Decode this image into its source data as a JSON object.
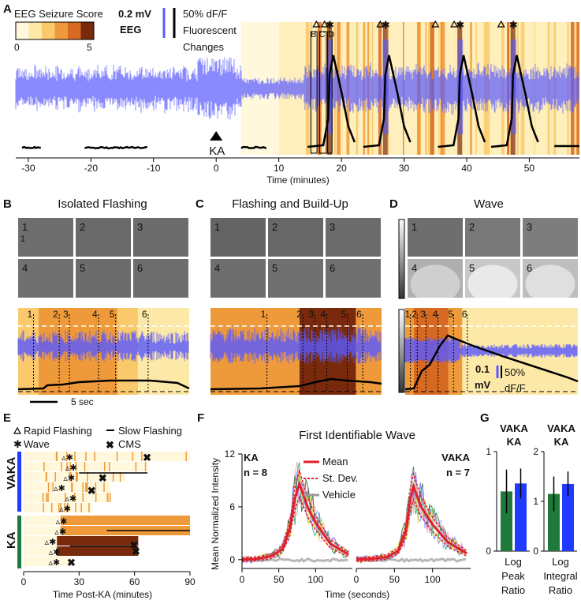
{
  "colors": {
    "eeg": "#5a5aff",
    "fluor": "#000000",
    "score0": "#fff8dc",
    "score1": "#fde9a7",
    "score2": "#f9c96b",
    "score3": "#ef9a3a",
    "score4": "#d66a22",
    "score5": "#7a2a0c",
    "vaka": "#1f3bff",
    "ka": "#1e7a3a",
    "red": "#e0202a"
  },
  "panels": {
    "a": "A",
    "b": "B",
    "c": "C",
    "d": "D",
    "e": "E",
    "f": "F",
    "g": "G"
  },
  "panelA": {
    "legend_title": "EEG Seizure Score",
    "legend_min": "0",
    "legend_max": "5",
    "eeg_scale": "0.2 mV",
    "eeg_label": "EEG",
    "fluor_scale_lines": [
      "50% dF/F",
      "Fluorescent",
      "Changes"
    ],
    "ka_label": "KA",
    "xlabel": "Time (minutes)",
    "xticks": [
      "-30",
      "-20",
      "-10",
      "0",
      "10",
      "20",
      "30",
      "40",
      "50"
    ],
    "xtick_values": [
      -30,
      -20,
      -10,
      0,
      10,
      20,
      30,
      40,
      50
    ],
    "xlim": [
      -32,
      58
    ],
    "event_letters": [
      "B",
      "C",
      "D"
    ],
    "event_letter_times": [
      15.6,
      16.9,
      18.4
    ],
    "wave_times": [
      18.1,
      27.0,
      38.9,
      47.4
    ],
    "flash_times": [
      16.0,
      17.3,
      26.2,
      35.0,
      38.0,
      45.5
    ]
  },
  "panelB": {
    "title": "Isolated Flashing",
    "frames": [
      "1",
      "2",
      "3",
      "4",
      "5",
      "6"
    ],
    "markers": [
      "1",
      "2",
      "3",
      "4",
      "5",
      "6"
    ],
    "scalebar": "5 sec"
  },
  "panelC": {
    "title": "Flashing and Build-Up",
    "frames": [
      "1",
      "2",
      "3",
      "4",
      "5",
      "6"
    ],
    "markers": [
      "1",
      "2",
      "3",
      "4",
      "5",
      "6"
    ]
  },
  "panelD": {
    "title": "Wave",
    "frames": [
      "1",
      "2",
      "3",
      "4",
      "5",
      "6"
    ],
    "markers": [
      "1",
      "2",
      "3",
      "4",
      "5",
      "6"
    ],
    "eeg_scale_value": "0.1",
    "eeg_scale_unit": "mV",
    "fluor_scale": "50%",
    "fluor_unit": "dF/F"
  },
  "panelE": {
    "legend": {
      "rapid": "Rapid Flashing",
      "wave": "Wave",
      "slow": "Slow Flashing",
      "cms": "CMS"
    },
    "groups": [
      "VAKA",
      "KA"
    ],
    "xlabel": "Time Post-KA (minutes)",
    "xticks": [
      "0",
      "30",
      "60",
      "90"
    ],
    "xtick_values": [
      0,
      30,
      60,
      90
    ],
    "vaka_end_times": [
      90,
      67,
      55,
      47,
      47,
      37
    ],
    "ka_end_times": [
      90,
      90,
      62,
      62,
      26
    ],
    "cms_times": [
      67,
      43,
      37,
      60,
      61,
      26
    ]
  },
  "panelF": {
    "title": "First Identifiable Wave",
    "ylabel": "Mean Normalized Intensity",
    "xlabel": "Time (seconds)",
    "yticks": [
      "0",
      "6",
      "12"
    ],
    "ytick_values": [
      0,
      6,
      12
    ],
    "xticks_left": [
      "0",
      "50",
      "100"
    ],
    "xticks_right": [
      "0",
      "50",
      "100"
    ],
    "ka_label": "KA",
    "ka_n": "n = 8",
    "vaka_label": "VAKA",
    "vaka_n": "n = 7",
    "legend": [
      "Mean",
      "St. Dev.",
      "Vehicle"
    ]
  },
  "chart_data": [
    {
      "type": "line",
      "title": "First Identifiable Wave (KA, n = 8)",
      "xlabel": "Time (seconds)",
      "ylabel": "Mean Normalized Intensity",
      "xlim": [
        0,
        150
      ],
      "ylim": [
        -1,
        12
      ],
      "series": [
        {
          "name": "Mean",
          "x": [
            0,
            20,
            40,
            55,
            65,
            72,
            78,
            90,
            100,
            120,
            145
          ],
          "values": [
            0,
            0.1,
            0.4,
            1.2,
            3.5,
            7.0,
            8.6,
            5.8,
            4.2,
            1.8,
            0.6
          ]
        }
      ]
    },
    {
      "type": "line",
      "title": "First Identifiable Wave (VAKA, n = 7)",
      "xlabel": "Time (seconds)",
      "ylabel": "Mean Normalized Intensity",
      "xlim": [
        0,
        150
      ],
      "ylim": [
        -1,
        12
      ],
      "series": [
        {
          "name": "Mean",
          "x": [
            0,
            20,
            40,
            55,
            65,
            70,
            75,
            85,
            100,
            120,
            145
          ],
          "values": [
            0,
            0.1,
            0.3,
            1.0,
            3.2,
            6.5,
            8.3,
            6.0,
            4.0,
            2.0,
            0.7
          ]
        }
      ]
    },
    {
      "type": "bar",
      "title": "Log Peak Ratio",
      "categories": [
        "KA",
        "VAKA"
      ],
      "values": [
        0.6,
        0.68
      ],
      "errors": [
        0.22,
        0.15
      ],
      "ylim": [
        0,
        1
      ]
    },
    {
      "type": "bar",
      "title": "Log Integral Ratio",
      "categories": [
        "KA",
        "VAKA"
      ],
      "values": [
        1.15,
        1.35
      ],
      "errors": [
        0.35,
        0.25
      ],
      "ylim": [
        0,
        2
      ]
    }
  ],
  "panelG": {
    "groups": [
      "VAKA",
      "KA"
    ],
    "left_yticks": [
      "0",
      "1"
    ],
    "right_yticks": [
      "0",
      "1",
      "2"
    ],
    "left_label": [
      "Log",
      "Peak",
      "Ratio"
    ],
    "right_label": [
      "Log",
      "Integral",
      "Ratio"
    ]
  }
}
